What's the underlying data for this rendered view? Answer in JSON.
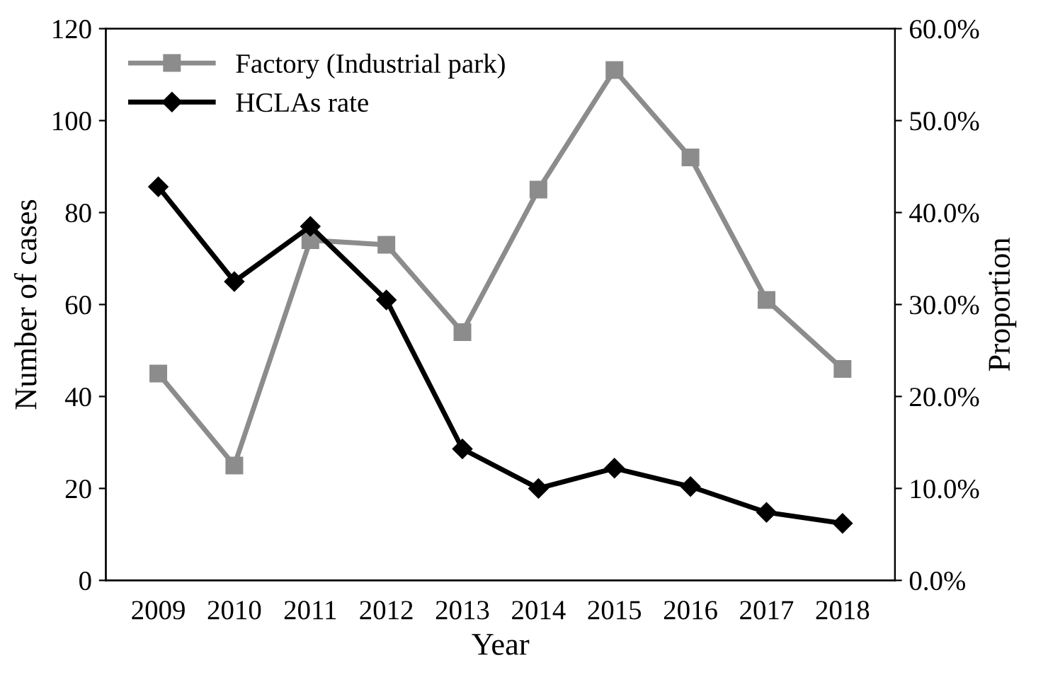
{
  "chart_data": {
    "type": "line",
    "xlabel": "Year",
    "ylabel": "Number of cases",
    "y2label": "Proportion",
    "categories": [
      "2009",
      "2010",
      "2011",
      "2012",
      "2013",
      "2014",
      "2015",
      "2016",
      "2017",
      "2018"
    ],
    "series": [
      {
        "name": "Factory (Industrial park)",
        "color": "#8c8c8c",
        "marker": "square",
        "values": [
          45,
          25,
          74,
          73,
          54,
          85,
          111,
          92,
          61,
          46
        ]
      },
      {
        "name": "HCLAs rate",
        "color": "#000000",
        "marker": "diamond",
        "axis": "y2",
        "values": [
          42.8,
          32.5,
          38.5,
          30.5,
          14.3,
          10,
          12.2,
          10.2,
          7.4,
          6.2
        ]
      }
    ],
    "ylim": [
      0,
      120
    ],
    "yticks": [
      0,
      20,
      40,
      60,
      80,
      100,
      120
    ],
    "y2lim": [
      0,
      60
    ],
    "y2ticks": [
      {
        "value": 0,
        "label": "0.0%"
      },
      {
        "value": 10,
        "label": "10.0%"
      },
      {
        "value": 20,
        "label": "20.0%"
      },
      {
        "value": 30,
        "label": "30.0%"
      },
      {
        "value": 40,
        "label": "40.0%"
      },
      {
        "value": 50,
        "label": "50.0%"
      },
      {
        "value": 60,
        "label": "60.0%"
      }
    ],
    "grid": false,
    "legend": "top left",
    "line_style": "solid"
  }
}
